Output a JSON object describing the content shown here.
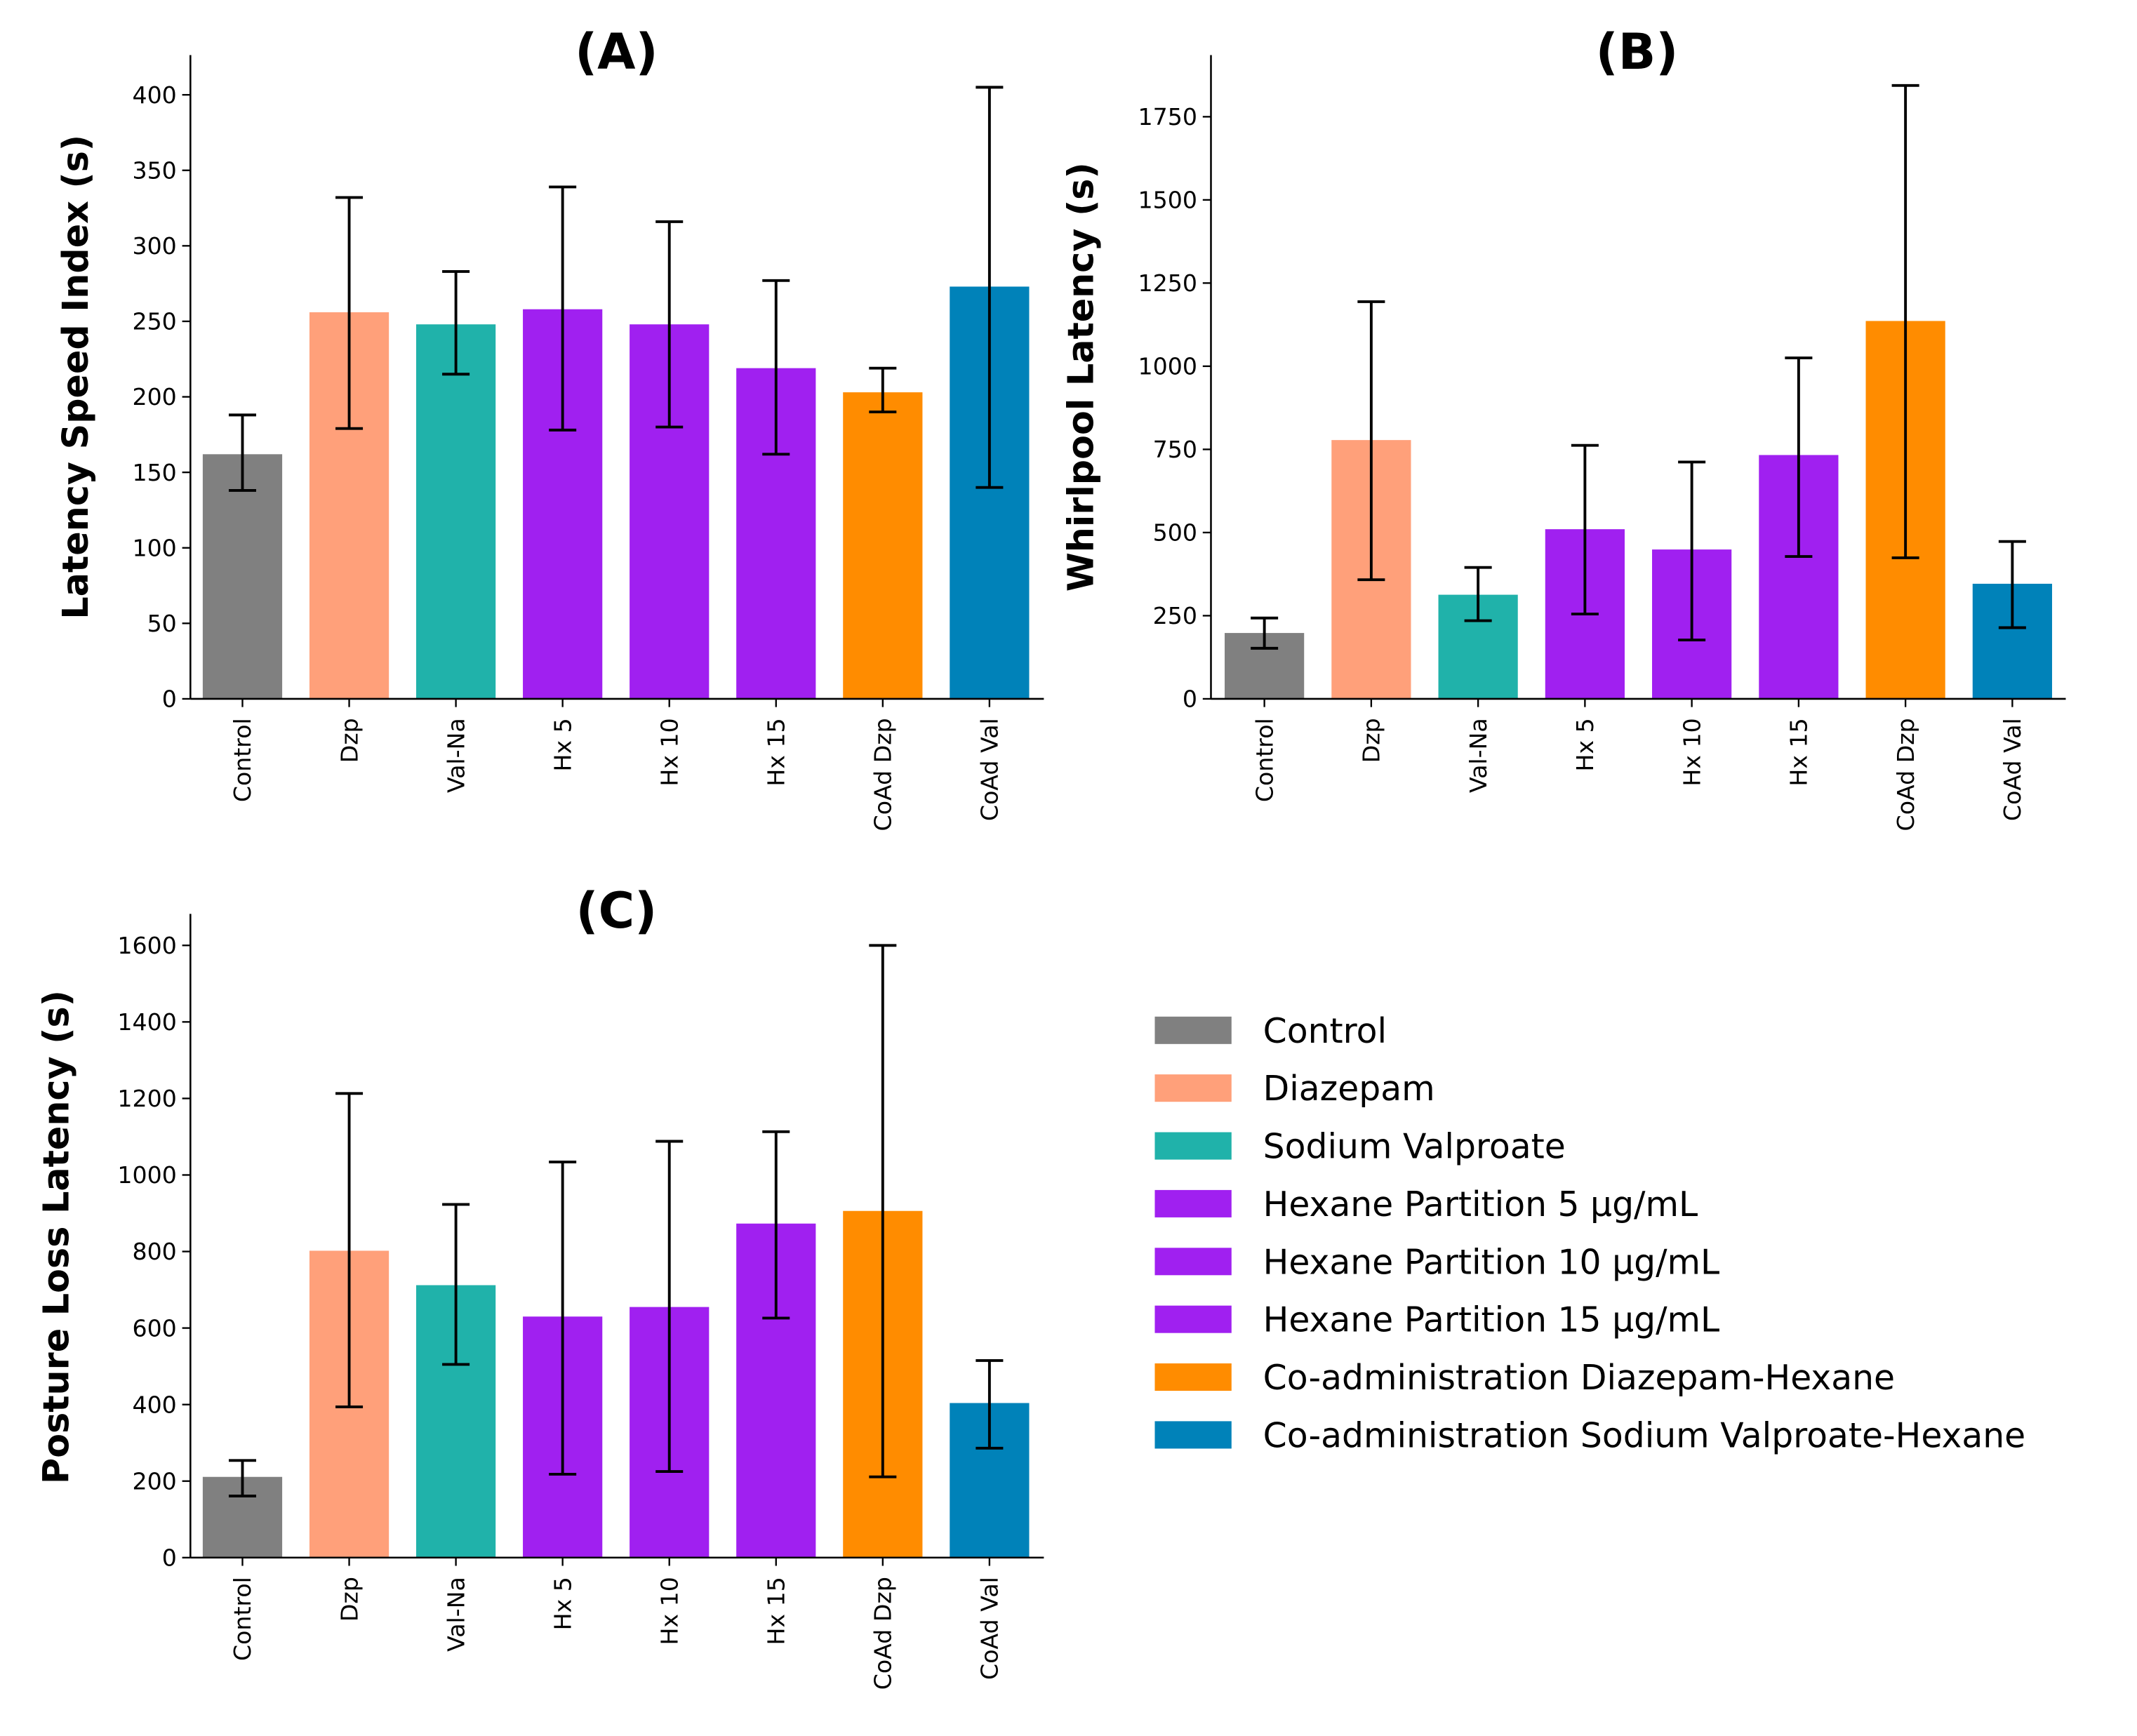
{
  "colors": {
    "Control": "#808080",
    "Dzp": "#ffa07a",
    "Val-Na": "#20b2aa",
    "Hx 5": "#a020f0",
    "Hx 10": "#a020f0",
    "Hx 15": "#a020f0",
    "CoAd Dzp": "#ff8c00",
    "CoAd Val": "#0082b9"
  },
  "legend": {
    "placement": "right",
    "items": [
      {
        "label": "Control",
        "color": "#808080"
      },
      {
        "label": "Diazepam",
        "color": "#ffa07a"
      },
      {
        "label": "Sodium Valproate",
        "color": "#20b2aa"
      },
      {
        "label": "Hexane Partition 5 µg/mL",
        "color": "#a020f0"
      },
      {
        "label": "Hexane Partition 10 µg/mL",
        "color": "#a020f0"
      },
      {
        "label": "Hexane Partition 15 µg/mL",
        "color": "#a020f0"
      },
      {
        "label": "Co-administration Diazepam-Hexane",
        "color": "#ff8c00"
      },
      {
        "label": "Co-administration Sodium Valproate-Hexane",
        "color": "#0082b9"
      }
    ]
  },
  "chart_data": [
    {
      "type": "bar",
      "panel": "A",
      "title": "(A)",
      "xlabel": "",
      "ylabel": "Latency Speed Index (s)",
      "categories": [
        "Control",
        "Dzp",
        "Val-Na",
        "Hx 5",
        "Hx 10",
        "Hx 15",
        "CoAd Dzp",
        "CoAd Val"
      ],
      "values": [
        162,
        256,
        248,
        258,
        248,
        219,
        203,
        273
      ],
      "error_low": [
        138,
        179,
        215,
        178,
        180,
        162,
        190,
        140
      ],
      "error_high": [
        188,
        332,
        283,
        339,
        316,
        277,
        219,
        405
      ],
      "ylim": [
        0,
        425
      ],
      "yticks": [
        0,
        50,
        100,
        150,
        200,
        250,
        300,
        350,
        400
      ],
      "grid": false
    },
    {
      "type": "bar",
      "panel": "B",
      "title": "(B)",
      "xlabel": "",
      "ylabel": "Whirlpool Latency (s)",
      "categories": [
        "Control",
        "Dzp",
        "Val-Na",
        "Hx 5",
        "Hx 10",
        "Hx 15",
        "CoAd Dzp",
        "CoAd Val"
      ],
      "values": [
        198,
        778,
        313,
        510,
        449,
        733,
        1136,
        346
      ],
      "error_low": [
        152,
        358,
        235,
        255,
        177,
        428,
        424,
        214
      ],
      "error_high": [
        243,
        1194,
        395,
        762,
        712,
        1025,
        1844,
        473
      ],
      "ylim": [
        0,
        1940
      ],
      "yticks": [
        0,
        250,
        500,
        750,
        1000,
        1250,
        1500,
        1750
      ],
      "grid": false
    },
    {
      "type": "bar",
      "panel": "C",
      "title": "(C)",
      "xlabel": "",
      "ylabel": "Posture Loss Latency (s)",
      "categories": [
        "Control",
        "Dzp",
        "Val-Na",
        "Hx 5",
        "Hx 10",
        "Hx 15",
        "CoAd Dzp",
        "CoAd Val"
      ],
      "values": [
        211,
        802,
        712,
        630,
        655,
        873,
        906,
        404
      ],
      "error_low": [
        161,
        394,
        505,
        218,
        225,
        626,
        211,
        286
      ],
      "error_high": [
        254,
        1213,
        923,
        1034,
        1088,
        1113,
        1600,
        515
      ],
      "ylim": [
        0,
        1680
      ],
      "yticks": [
        0,
        200,
        400,
        600,
        800,
        1000,
        1200,
        1400,
        1600
      ],
      "grid": false
    }
  ]
}
